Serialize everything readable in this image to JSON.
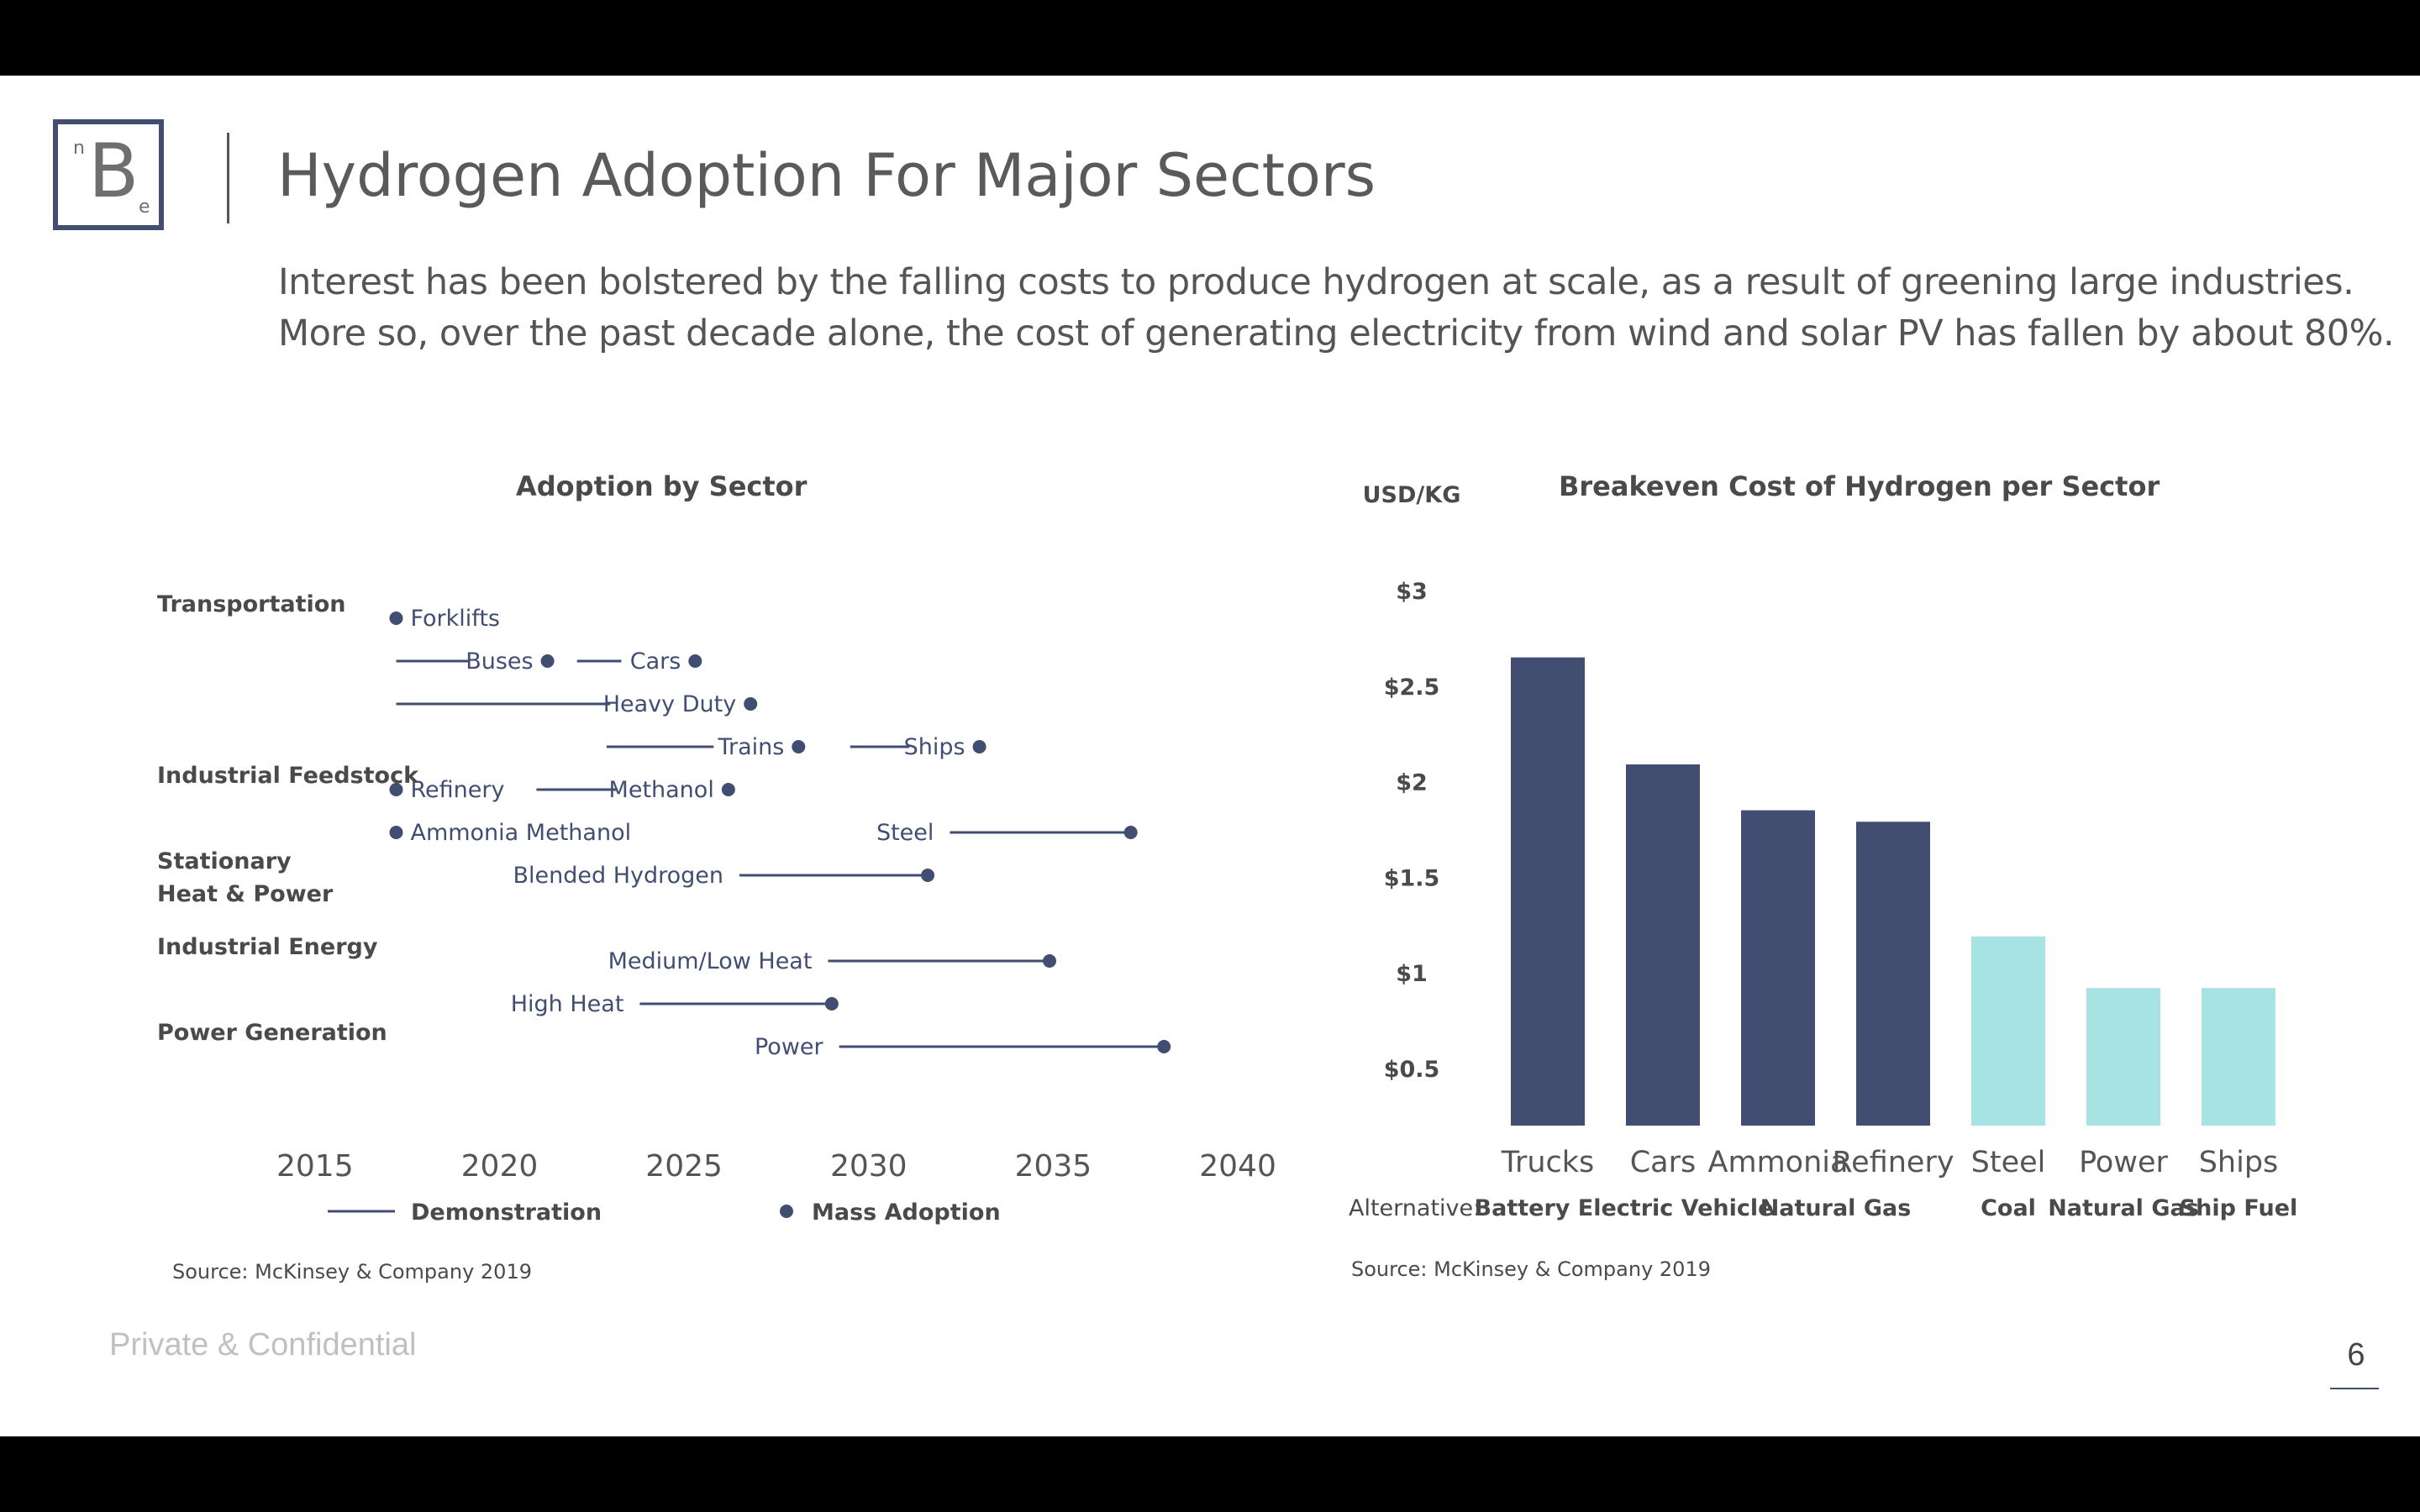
{
  "header": {
    "logo_main": "B",
    "logo_sup": "n",
    "logo_sub": "e",
    "title": "Hydrogen Adoption For Major Sectors",
    "intro": "Interest has been bolstered by the falling costs to produce hydrogen at scale, as a result of greening large industries. More so, over the past decade alone, the cost of generating electricity from wind and solar PV has fallen by about 80%."
  },
  "colors": {
    "navy": "#414e72",
    "cyan": "#a8e3e4",
    "text": "#4a4a4a"
  },
  "chart_data": [
    {
      "type": "scatter",
      "title": "Adoption by Sector",
      "xlabel": "",
      "ylabel": "",
      "xlim": [
        2012.5,
        2041
      ],
      "x_ticks": [
        2015,
        2020,
        2025,
        2030,
        2035,
        2040
      ],
      "legend": {
        "placement": "bottom",
        "demonstration": "Demonstration",
        "mass_adoption": "Mass Adoption"
      },
      "groups": [
        {
          "label_lines": [
            "Transportation"
          ],
          "row": 0
        },
        {
          "label_lines": [
            "Industrial Feedstock"
          ],
          "row": 4
        },
        {
          "label_lines": [
            "Stationary",
            "Heat & Power"
          ],
          "row": 6
        },
        {
          "label_lines": [
            "Industrial Energy"
          ],
          "row": 8
        },
        {
          "label_lines": [
            "Power Generation"
          ],
          "row": 10
        }
      ],
      "items": [
        {
          "name": "Forklifts",
          "row": 0,
          "demo_start": null,
          "demo_end": null,
          "mass": 2017.2,
          "label_side": "right"
        },
        {
          "name": "Buses",
          "row": 1,
          "demo_start": 2017.2,
          "demo_end": 2019.2,
          "mass": 2021.3,
          "label_side": "before-dot"
        },
        {
          "name": "Cars",
          "row": 1,
          "demo_start": 2022.1,
          "demo_end": 2023.3,
          "mass": 2025.3,
          "label_side": "before-dot"
        },
        {
          "name": "Heavy Duty",
          "row": 2,
          "demo_start": 2017.2,
          "demo_end": 2023.0,
          "mass": 2026.8,
          "label_side": "before-dot"
        },
        {
          "name": "Trains",
          "row": 3,
          "demo_start": 2022.9,
          "demo_end": 2025.8,
          "mass": 2028.1,
          "label_side": "before-dot"
        },
        {
          "name": "Ships",
          "row": 3,
          "demo_start": 2029.5,
          "demo_end": 2031.1,
          "mass": 2033.0,
          "label_side": "before-dot"
        },
        {
          "name": "Refinery",
          "row": 4,
          "demo_start": null,
          "demo_end": null,
          "mass": 2017.2,
          "label_side": "right"
        },
        {
          "name": "Methanol",
          "row": 4,
          "demo_start": 2021.0,
          "demo_end": 2023.2,
          "mass": 2026.2,
          "label_side": "before-dot"
        },
        {
          "name": "Ammonia Methanol",
          "row": 5,
          "demo_start": null,
          "demo_end": null,
          "mass": 2017.2,
          "label_side": "right"
        },
        {
          "name": "Steel",
          "row": 5,
          "demo_start": 2032.2,
          "demo_end": 2037.1,
          "mass": 2037.1,
          "label_side": "left"
        },
        {
          "name": "Blended Hydrogen",
          "row": 6,
          "demo_start": 2026.5,
          "demo_end": 2031.6,
          "mass": 2031.6,
          "label_side": "left"
        },
        {
          "name": "Medium/Low Heat",
          "row": 8,
          "demo_start": 2028.9,
          "demo_end": 2034.9,
          "mass": 2034.9,
          "label_side": "left"
        },
        {
          "name": "High Heat",
          "row": 9,
          "demo_start": 2023.8,
          "demo_end": 2029.0,
          "mass": 2029.0,
          "label_side": "left"
        },
        {
          "name": "Power",
          "row": 10,
          "demo_start": 2029.2,
          "demo_end": 2038.0,
          "mass": 2038.0,
          "label_side": "left"
        }
      ],
      "source": "Source: McKinsey & Company 2019"
    },
    {
      "type": "bar",
      "title": "Breakeven Cost of Hydrogen per Sector",
      "ylabel": "USD/KG",
      "ylim": [
        0.2,
        3.1
      ],
      "y_ticks": [
        {
          "value": 0.5,
          "label": "$0.5"
        },
        {
          "value": 1,
          "label": "$1"
        },
        {
          "value": 1.5,
          "label": "$1.5"
        },
        {
          "value": 2,
          "label": "$2"
        },
        {
          "value": 2.5,
          "label": "$2.5"
        },
        {
          "value": 3,
          "label": "$3"
        }
      ],
      "categories": [
        "Trucks",
        "Cars",
        "Ammonia",
        "Refinery",
        "Steel",
        "Power",
        "Ships"
      ],
      "values": [
        2.65,
        2.09,
        1.85,
        1.79,
        1.19,
        0.92,
        0.92
      ],
      "bar_colors": [
        "#414e72",
        "#414e72",
        "#414e72",
        "#414e72",
        "#a8e3e4",
        "#a8e3e4",
        "#a8e3e4"
      ],
      "alternative_prefix": "Alternative:",
      "alternatives": [
        {
          "label": "Battery Electric Vehicle",
          "under": [
            0,
            1
          ]
        },
        {
          "label": "Natural Gas",
          "under": [
            2,
            3
          ]
        },
        {
          "label": "Coal",
          "under": [
            4,
            4
          ]
        },
        {
          "label": "Natural Gas",
          "under": [
            5,
            5
          ]
        },
        {
          "label": "Ship Fuel",
          "under": [
            6,
            6
          ]
        }
      ],
      "source": "Source: McKinsey & Company 2019"
    }
  ],
  "footer": {
    "confidential": "Private & Confidential",
    "page_number": "6"
  }
}
